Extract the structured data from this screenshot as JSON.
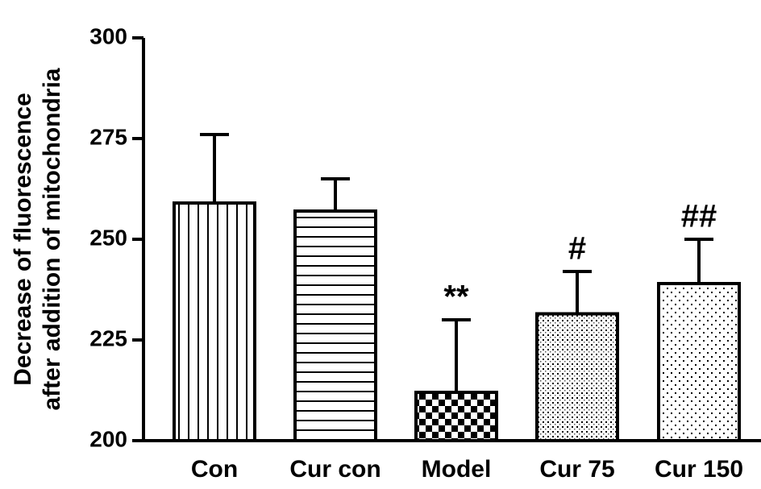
{
  "chart_data": {
    "type": "bar",
    "ylabel": [
      "Decrease of fluorescence",
      "after addition of mitochondria"
    ],
    "categories": [
      "Con",
      "Cur con",
      "Model",
      "Cur 75",
      "Cur 150"
    ],
    "values": [
      259,
      257,
      212,
      231.5,
      239
    ],
    "errors": [
      17,
      8,
      18,
      10.5,
      11
    ],
    "patterns": [
      "vertical",
      "horizontal",
      "checker",
      "dense-dots",
      "dots"
    ],
    "color": "#000000",
    "annotations": [
      {
        "category": "Model",
        "text": "**"
      },
      {
        "category": "Cur 75",
        "text": "#"
      },
      {
        "category": "Cur 150",
        "text": "##"
      }
    ],
    "ylim": [
      200,
      300
    ],
    "yticks": [
      200,
      225,
      250,
      275,
      300
    ],
    "grid": false
  }
}
